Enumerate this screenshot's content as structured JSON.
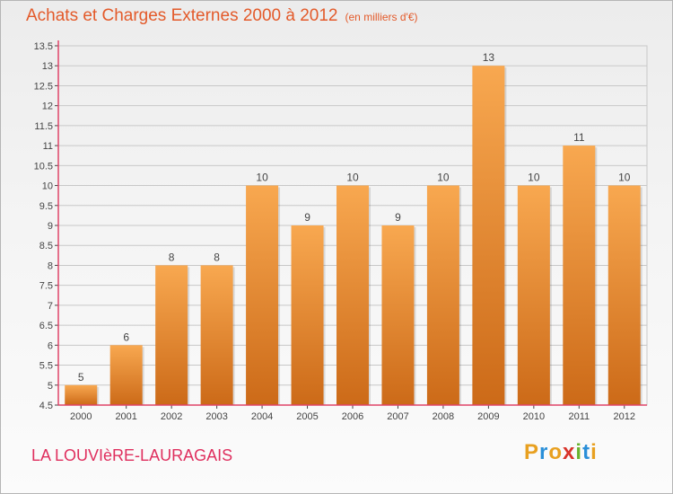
{
  "header": {
    "title": "Achats et Charges Externes 2000 à 2012",
    "unit": "(en milliers d'€)"
  },
  "footer": {
    "town": "LA LOUVIèRE-LAURAGAIS",
    "logo_letters": [
      "P",
      "r",
      "o",
      "x",
      "i",
      "t",
      "i"
    ],
    "logo_colors": [
      "#e8a020",
      "#2a8fd8",
      "#e8a020",
      "#d8332a",
      "#6ab32e",
      "#2a8fd8",
      "#e8a020"
    ]
  },
  "colors": {
    "bar_top": "#f8a850",
    "bar_bottom": "#cc6a18",
    "axis": "#e04468",
    "grid": "#c8c8c8",
    "text": "#444444"
  },
  "chart_data": {
    "type": "bar",
    "categories": [
      "2000",
      "2001",
      "2002",
      "2003",
      "2004",
      "2005",
      "2006",
      "2007",
      "2008",
      "2009",
      "2010",
      "2011",
      "2012"
    ],
    "values": [
      5,
      6,
      8,
      8,
      10,
      9,
      10,
      9,
      10,
      13,
      10,
      11,
      10
    ],
    "labels": [
      "5",
      "6",
      "8",
      "8",
      "10",
      "9",
      "10",
      "9",
      "10",
      "13",
      "10",
      "11",
      "10"
    ],
    "yticks": [
      "4.5",
      "5",
      "5.5",
      "6",
      "6.5",
      "7",
      "7.5",
      "8",
      "8.5",
      "9",
      "9.5",
      "10",
      "10.5",
      "11",
      "11.5",
      "12",
      "12.5",
      "13",
      "13.5"
    ],
    "ylim": [
      4.5,
      13.5
    ],
    "grid": true,
    "legend": "none"
  }
}
